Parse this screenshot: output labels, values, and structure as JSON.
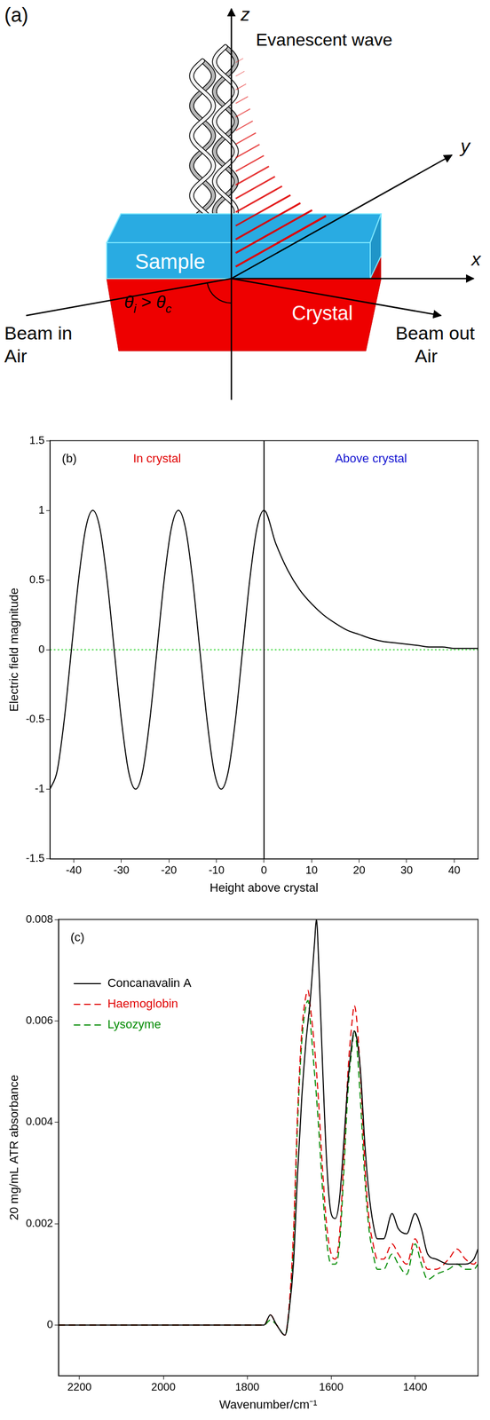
{
  "diagram": {
    "panel_label": "(a)",
    "axes": {
      "x": "x",
      "y": "y",
      "z": "z"
    },
    "labels": {
      "evanescent": "Evanescent wave",
      "sample": "Sample",
      "crystal": "Crystal",
      "beam_in": "Beam in",
      "beam_in_medium": "Air",
      "beam_out": "Beam out",
      "beam_out_medium": "Air"
    },
    "angle": {
      "symbol": "θ",
      "incident_sub": "i",
      "relation": ">",
      "critical_sub": "c"
    }
  },
  "chart_data": [
    {
      "type": "line",
      "panel_label": "(b)",
      "x_label": "Height above crystal",
      "y_label": "Electric field magnitude",
      "annotations": [
        {
          "text": "In crystal",
          "color": "#e00000"
        },
        {
          "text": "Above crystal",
          "color": "#1010d0"
        }
      ],
      "x": [
        -45,
        -43.5,
        -42,
        -40.5,
        -39,
        -37.5,
        -36,
        -34.5,
        -33,
        -31.5,
        -30,
        -28.5,
        -27,
        -25.5,
        -24,
        -22.5,
        -21,
        -19.5,
        -18,
        -16.5,
        -15,
        -13.5,
        -12,
        -10.5,
        -9,
        -7.5,
        -6,
        -4.5,
        -3,
        -1.5,
        0,
        2.5,
        5,
        7.5,
        10,
        12.5,
        15,
        17.5,
        20,
        22.5,
        25,
        27.5,
        30,
        32.5,
        35,
        37.5,
        40,
        42.5,
        45
      ],
      "values": [
        -1,
        -0.87,
        -0.5,
        0,
        0.5,
        0.87,
        1,
        0.87,
        0.5,
        0,
        -0.5,
        -0.87,
        -1,
        -0.87,
        -0.5,
        0,
        0.5,
        0.87,
        1,
        0.87,
        0.5,
        0,
        -0.5,
        -0.87,
        -1,
        -0.87,
        -0.5,
        0,
        0.5,
        0.87,
        1,
        0.76,
        0.57,
        0.43,
        0.33,
        0.25,
        0.19,
        0.14,
        0.11,
        0.08,
        0.06,
        0.05,
        0.04,
        0.03,
        0.02,
        0.02,
        0.01,
        0.01,
        0.01
      ],
      "color": "#000000",
      "line_style": "solid",
      "xlim": [
        -45,
        45
      ],
      "xticks": [
        -40,
        -30,
        -20,
        -10,
        0,
        10,
        20,
        30,
        40
      ],
      "ylim": [
        -1.5,
        1.5
      ],
      "yticks": [
        -1.5,
        -1,
        -0.5,
        0,
        0.5,
        1,
        1.5
      ],
      "grid": false,
      "hlines": [
        {
          "y": 0,
          "color": "#00cc00",
          "line_style": "dotted"
        }
      ],
      "vlines": [
        {
          "x": 0,
          "color": "#000000",
          "line_style": "solid"
        }
      ]
    },
    {
      "type": "line",
      "panel_label": "(c)",
      "x_label": "Wavenumber/cm⁻¹",
      "y_label": "20 mg/mL ATR absorbance",
      "x": [
        2250,
        2200,
        2100,
        2000,
        1900,
        1800,
        1760,
        1745,
        1730,
        1710,
        1700,
        1690,
        1680,
        1670,
        1660,
        1655,
        1650,
        1640,
        1635,
        1630,
        1620,
        1610,
        1600,
        1590,
        1580,
        1570,
        1560,
        1550,
        1545,
        1540,
        1530,
        1520,
        1510,
        1500,
        1490,
        1475,
        1455,
        1440,
        1420,
        1400,
        1385,
        1370,
        1350,
        1320,
        1300,
        1280,
        1260,
        1250
      ],
      "series": [
        {
          "name": "Concanavalin A",
          "color": "#000000",
          "line_style": "solid",
          "values": [
            0,
            0,
            0,
            0,
            0,
            0,
            0,
            0.0002,
            0,
            -0.0002,
            0.0003,
            0.0012,
            0.003,
            0.0045,
            0.0056,
            0.006,
            0.0064,
            0.0075,
            0.008,
            0.0072,
            0.005,
            0.0031,
            0.0022,
            0.0021,
            0.0025,
            0.0036,
            0.0048,
            0.0056,
            0.0058,
            0.0057,
            0.005,
            0.0036,
            0.0026,
            0.002,
            0.0017,
            0.0017,
            0.0022,
            0.0019,
            0.0018,
            0.0022,
            0.0019,
            0.0014,
            0.0013,
            0.0012,
            0.0012,
            0.0012,
            0.0013,
            0.0015
          ]
        },
        {
          "name": "Haemoglobin",
          "color": "#e00000",
          "line_style": "dashed",
          "values": [
            0,
            0,
            0,
            0,
            0,
            0,
            0,
            0.0002,
            0,
            -0.0002,
            0.0004,
            0.0018,
            0.0042,
            0.0058,
            0.0065,
            0.0066,
            0.0063,
            0.0055,
            0.005,
            0.0044,
            0.003,
            0.0019,
            0.0014,
            0.0013,
            0.0018,
            0.0033,
            0.005,
            0.006,
            0.0063,
            0.0061,
            0.0049,
            0.0032,
            0.0021,
            0.0016,
            0.0013,
            0.0013,
            0.0016,
            0.0014,
            0.0012,
            0.0017,
            0.0014,
            0.0011,
            0.0011,
            0.0013,
            0.0015,
            0.0013,
            0.0012,
            0.0013
          ]
        },
        {
          "name": "Lysozyme",
          "color": "#008a00",
          "line_style": "dashed",
          "values": [
            0,
            0,
            0,
            0,
            0,
            0,
            0,
            0.0001,
            0,
            -0.0002,
            0.0003,
            0.0016,
            0.004,
            0.0056,
            0.0063,
            0.0064,
            0.006,
            0.005,
            0.0045,
            0.0039,
            0.0026,
            0.0016,
            0.0012,
            0.0012,
            0.0016,
            0.003,
            0.0046,
            0.0055,
            0.0058,
            0.0056,
            0.0044,
            0.0029,
            0.0019,
            0.0014,
            0.0011,
            0.0011,
            0.0014,
            0.0012,
            0.001,
            0.0016,
            0.0012,
            0.0009,
            0.001,
            0.0011,
            0.0012,
            0.0011,
            0.0011,
            0.0012
          ]
        }
      ],
      "xlim": [
        2250,
        1250
      ],
      "xticks": [
        2200,
        2000,
        1800,
        1600,
        1400
      ],
      "ylim": [
        -0.001,
        0.008
      ],
      "yticks": [
        0,
        0.002,
        0.004,
        0.006,
        0.008
      ],
      "grid": false,
      "legend": "upper left"
    }
  ]
}
